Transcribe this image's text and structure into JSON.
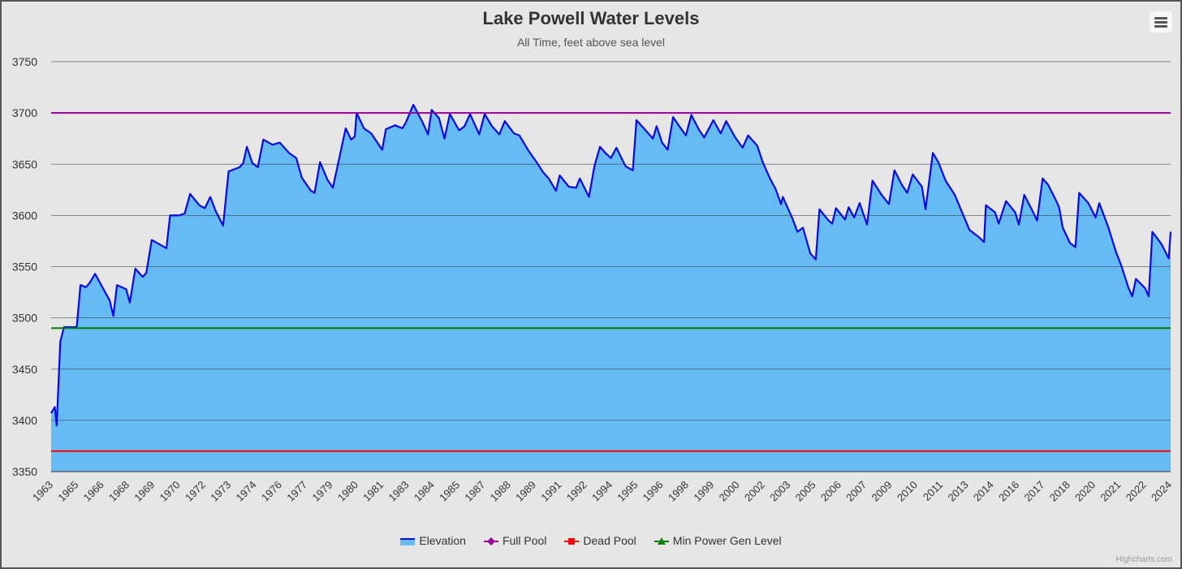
{
  "chart_data": {
    "type": "area",
    "title": "Lake Powell Water Levels",
    "subtitle": "All Time, feet above sea level",
    "xlabel": "",
    "ylabel": "",
    "ylim": [
      3350,
      3750
    ],
    "yticks": [
      3350,
      3400,
      3450,
      3500,
      3550,
      3600,
      3650,
      3700,
      3750
    ],
    "xlim": [
      1963.2,
      2024.4
    ],
    "xtick_labels": [
      "1963",
      "1965",
      "1966",
      "1968",
      "1969",
      "1970",
      "1972",
      "1973",
      "1974",
      "1976",
      "1977",
      "1979",
      "1980",
      "1981",
      "1983",
      "1984",
      "1985",
      "1987",
      "1988",
      "1989",
      "1991",
      "1992",
      "1994",
      "1995",
      "1996",
      "1998",
      "1999",
      "2000",
      "2002",
      "2003",
      "2005",
      "2006",
      "2007",
      "2009",
      "2010",
      "2011",
      "2013",
      "2014",
      "2016",
      "2017",
      "2018",
      "2020",
      "2021",
      "2022",
      "2024"
    ],
    "grid": true,
    "legend_position": "bottom-center",
    "series": [
      {
        "name": "Elevation",
        "type": "area",
        "color": "#0a0ae0",
        "fill": "#66bbf5",
        "points": [
          [
            1963.2,
            3407
          ],
          [
            1963.4,
            3413
          ],
          [
            1963.5,
            3395
          ],
          [
            1963.7,
            3477
          ],
          [
            1963.9,
            3491
          ],
          [
            1964.6,
            3491
          ],
          [
            1964.8,
            3532
          ],
          [
            1965.1,
            3530
          ],
          [
            1965.3,
            3534
          ],
          [
            1965.6,
            3543
          ],
          [
            1966.0,
            3530
          ],
          [
            1966.4,
            3517
          ],
          [
            1966.6,
            3502
          ],
          [
            1966.8,
            3532
          ],
          [
            1967.3,
            3528
          ],
          [
            1967.5,
            3515
          ],
          [
            1967.8,
            3548
          ],
          [
            1968.2,
            3540
          ],
          [
            1968.4,
            3544
          ],
          [
            1968.7,
            3576
          ],
          [
            1969.1,
            3572
          ],
          [
            1969.5,
            3568
          ],
          [
            1969.7,
            3600
          ],
          [
            1970.2,
            3600
          ],
          [
            1970.5,
            3602
          ],
          [
            1970.8,
            3621
          ],
          [
            1971.3,
            3610
          ],
          [
            1971.6,
            3607
          ],
          [
            1971.9,
            3618
          ],
          [
            1972.2,
            3604
          ],
          [
            1972.6,
            3590
          ],
          [
            1972.9,
            3643
          ],
          [
            1973.5,
            3647
          ],
          [
            1973.7,
            3651
          ],
          [
            1973.9,
            3667
          ],
          [
            1974.2,
            3651
          ],
          [
            1974.5,
            3647
          ],
          [
            1974.8,
            3674
          ],
          [
            1975.3,
            3669
          ],
          [
            1975.7,
            3671
          ],
          [
            1976.2,
            3661
          ],
          [
            1976.6,
            3656
          ],
          [
            1976.9,
            3637
          ],
          [
            1977.4,
            3624
          ],
          [
            1977.6,
            3622
          ],
          [
            1977.9,
            3652
          ],
          [
            1978.3,
            3635
          ],
          [
            1978.6,
            3627
          ],
          [
            1979.0,
            3660
          ],
          [
            1979.3,
            3685
          ],
          [
            1979.6,
            3674
          ],
          [
            1979.8,
            3677
          ],
          [
            1979.9,
            3700
          ],
          [
            1980.3,
            3685
          ],
          [
            1980.7,
            3680
          ],
          [
            1981.3,
            3664
          ],
          [
            1981.5,
            3684
          ],
          [
            1982.0,
            3688
          ],
          [
            1982.4,
            3685
          ],
          [
            1982.6,
            3691
          ],
          [
            1983.0,
            3708
          ],
          [
            1983.5,
            3691
          ],
          [
            1983.8,
            3679
          ],
          [
            1984.0,
            3703
          ],
          [
            1984.4,
            3695
          ],
          [
            1984.7,
            3675
          ],
          [
            1985.0,
            3699
          ],
          [
            1985.5,
            3683
          ],
          [
            1985.8,
            3687
          ],
          [
            1986.1,
            3699
          ],
          [
            1986.6,
            3679
          ],
          [
            1986.9,
            3699
          ],
          [
            1987.3,
            3687
          ],
          [
            1987.7,
            3679
          ],
          [
            1988.0,
            3692
          ],
          [
            1988.5,
            3680
          ],
          [
            1988.8,
            3678
          ],
          [
            1989.3,
            3663
          ],
          [
            1989.7,
            3653
          ],
          [
            1990.1,
            3642
          ],
          [
            1990.4,
            3636
          ],
          [
            1990.8,
            3624
          ],
          [
            1991.0,
            3639
          ],
          [
            1991.5,
            3628
          ],
          [
            1991.9,
            3627
          ],
          [
            1992.1,
            3636
          ],
          [
            1992.6,
            3618
          ],
          [
            1992.9,
            3648
          ],
          [
            1993.2,
            3667
          ],
          [
            1993.5,
            3661
          ],
          [
            1993.8,
            3656
          ],
          [
            1994.1,
            3666
          ],
          [
            1994.6,
            3648
          ],
          [
            1995.0,
            3644
          ],
          [
            1995.2,
            3693
          ],
          [
            1995.7,
            3683
          ],
          [
            1996.1,
            3675
          ],
          [
            1996.3,
            3687
          ],
          [
            1996.6,
            3671
          ],
          [
            1996.9,
            3664
          ],
          [
            1997.2,
            3696
          ],
          [
            1997.5,
            3688
          ],
          [
            1997.9,
            3678
          ],
          [
            1998.2,
            3698
          ],
          [
            1998.6,
            3684
          ],
          [
            1998.9,
            3676
          ],
          [
            1999.4,
            3693
          ],
          [
            1999.8,
            3680
          ],
          [
            2000.1,
            3692
          ],
          [
            2000.6,
            3676
          ],
          [
            2001.0,
            3666
          ],
          [
            2001.3,
            3678
          ],
          [
            2001.8,
            3668
          ],
          [
            2002.1,
            3652
          ],
          [
            2002.5,
            3636
          ],
          [
            2002.8,
            3626
          ],
          [
            2003.1,
            3611
          ],
          [
            2003.2,
            3618
          ],
          [
            2003.7,
            3598
          ],
          [
            2004.0,
            3584
          ],
          [
            2004.3,
            3588
          ],
          [
            2004.7,
            3563
          ],
          [
            2005.0,
            3557
          ],
          [
            2005.2,
            3606
          ],
          [
            2005.7,
            3595
          ],
          [
            2005.9,
            3592
          ],
          [
            2006.1,
            3607
          ],
          [
            2006.6,
            3596
          ],
          [
            2006.8,
            3608
          ],
          [
            2007.1,
            3598
          ],
          [
            2007.4,
            3612
          ],
          [
            2007.8,
            3591
          ],
          [
            2008.1,
            3634
          ],
          [
            2008.6,
            3620
          ],
          [
            2009.0,
            3611
          ],
          [
            2009.3,
            3644
          ],
          [
            2009.7,
            3630
          ],
          [
            2010.0,
            3622
          ],
          [
            2010.3,
            3640
          ],
          [
            2010.8,
            3628
          ],
          [
            2011.0,
            3606
          ],
          [
            2011.4,
            3661
          ],
          [
            2011.7,
            3652
          ],
          [
            2012.1,
            3634
          ],
          [
            2012.6,
            3620
          ],
          [
            2013.0,
            3603
          ],
          [
            2013.4,
            3586
          ],
          [
            2013.9,
            3579
          ],
          [
            2014.2,
            3574
          ],
          [
            2014.3,
            3610
          ],
          [
            2014.8,
            3603
          ],
          [
            2015.0,
            3592
          ],
          [
            2015.4,
            3614
          ],
          [
            2015.9,
            3603
          ],
          [
            2016.1,
            3591
          ],
          [
            2016.4,
            3620
          ],
          [
            2016.8,
            3606
          ],
          [
            2017.1,
            3595
          ],
          [
            2017.4,
            3636
          ],
          [
            2017.7,
            3630
          ],
          [
            2018.1,
            3616
          ],
          [
            2018.3,
            3608
          ],
          [
            2018.5,
            3588
          ],
          [
            2018.9,
            3573
          ],
          [
            2019.2,
            3569
          ],
          [
            2019.4,
            3622
          ],
          [
            2019.9,
            3612
          ],
          [
            2020.3,
            3598
          ],
          [
            2020.5,
            3612
          ],
          [
            2021.0,
            3588
          ],
          [
            2021.4,
            3565
          ],
          [
            2021.7,
            3551
          ],
          [
            2022.1,
            3529
          ],
          [
            2022.3,
            3521
          ],
          [
            2022.5,
            3538
          ],
          [
            2023.0,
            3529
          ],
          [
            2023.2,
            3521
          ],
          [
            2023.4,
            3584
          ],
          [
            2023.9,
            3572
          ],
          [
            2024.3,
            3558
          ],
          [
            2024.4,
            3584
          ]
        ]
      },
      {
        "name": "Full Pool",
        "type": "line",
        "color": "#990099",
        "value": 3700
      },
      {
        "name": "Dead Pool",
        "type": "line",
        "color": "#ff0000",
        "value": 3370
      },
      {
        "name": "Min Power Gen Level",
        "type": "line",
        "color": "#008000",
        "value": 3490
      }
    ]
  },
  "credits": "Highcharts.com",
  "menu_icon": "hamburger-menu-icon"
}
